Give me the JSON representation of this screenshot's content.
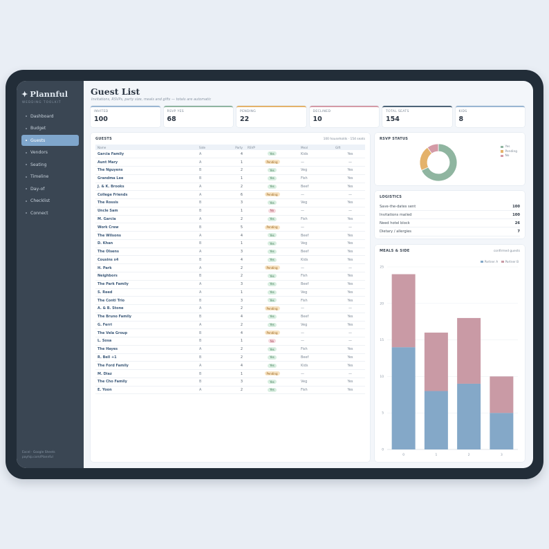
{
  "brand": {
    "name": "Plannful",
    "star": "✦",
    "subtitle": "WEDDING TOOLKIT"
  },
  "nav": [
    {
      "label": "Dashboard",
      "active": false
    },
    {
      "label": "Budget",
      "active": false
    },
    {
      "label": "Guests",
      "active": true
    },
    {
      "label": "Vendors",
      "active": false
    },
    {
      "label": "Seating",
      "active": false
    },
    {
      "label": "Timeline",
      "active": false
    },
    {
      "label": "Day-of",
      "active": false
    },
    {
      "label": "Checklist",
      "active": false
    },
    {
      "label": "Connect",
      "active": false
    }
  ],
  "footer": {
    "line1": "Excel · Google Sheets",
    "line2": "payhip.com/Plannful"
  },
  "page": {
    "title": "Guest List",
    "subtitle": "Invitations, RSVPs, party size, meals and gifts — totals are automatic"
  },
  "kpis": [
    {
      "label": "INVITED",
      "value": "100",
      "color": "#9ab6d2"
    },
    {
      "label": "RSVP YES",
      "value": "68",
      "color": "#8fb5a0"
    },
    {
      "label": "PENDING",
      "value": "22",
      "color": "#e4b26a"
    },
    {
      "label": "DECLINED",
      "value": "10",
      "color": "#d49aa6"
    },
    {
      "label": "TOTAL SEATS",
      "value": "154",
      "color": "#4d6478"
    },
    {
      "label": "KIDS",
      "value": "8",
      "color": "#9ab6d2"
    }
  ],
  "guests": {
    "title": "GUESTS",
    "meta": "100 households · 154 seats",
    "columns": [
      "Name",
      "Side",
      "Party",
      "RSVP",
      "Meal",
      "Gift"
    ],
    "rows": [
      [
        "Garcia Family",
        "A",
        "4",
        "Yes",
        "Kids",
        "Yes"
      ],
      [
        "Aunt Mary",
        "A",
        "1",
        "Pending",
        "—",
        "—"
      ],
      [
        "The Nguyens",
        "B",
        "2",
        "Yes",
        "Veg",
        "Yes"
      ],
      [
        "Grandma Lee",
        "B",
        "1",
        "Yes",
        "Fish",
        "Yes"
      ],
      [
        "J. & K. Brooks",
        "A",
        "2",
        "Yes",
        "Beef",
        "Yes"
      ],
      [
        "College Friends",
        "A",
        "6",
        "Pending",
        "—",
        "—"
      ],
      [
        "The Rossis",
        "B",
        "3",
        "Yes",
        "Veg",
        "Yes"
      ],
      [
        "Uncle Sam",
        "B",
        "1",
        "No",
        "—",
        "—"
      ],
      [
        "M. Garcia",
        "A",
        "2",
        "Yes",
        "Fish",
        "Yes"
      ],
      [
        "Work Crew",
        "B",
        "5",
        "Pending",
        "—",
        "—"
      ],
      [
        "The Wilsons",
        "A",
        "4",
        "Yes",
        "Beef",
        "Yes"
      ],
      [
        "D. Khan",
        "B",
        "1",
        "Yes",
        "Veg",
        "Yes"
      ],
      [
        "The Olsens",
        "A",
        "3",
        "Yes",
        "Beef",
        "Yes"
      ],
      [
        "Cousins x4",
        "B",
        "4",
        "Yes",
        "Kids",
        "Yes"
      ],
      [
        "H. Park",
        "A",
        "2",
        "Pending",
        "—",
        "—"
      ],
      [
        "Neighbors",
        "B",
        "2",
        "Yes",
        "Fish",
        "Yes"
      ],
      [
        "The Park Family",
        "A",
        "3",
        "Yes",
        "Beef",
        "Yes"
      ],
      [
        "S. Reed",
        "A",
        "1",
        "Yes",
        "Veg",
        "Yes"
      ],
      [
        "The Conti Trio",
        "B",
        "3",
        "Yes",
        "Fish",
        "Yes"
      ],
      [
        "A. & B. Stone",
        "A",
        "2",
        "Pending",
        "—",
        "—"
      ],
      [
        "The Bruno Family",
        "B",
        "4",
        "Yes",
        "Beef",
        "Yes"
      ],
      [
        "G. Ferri",
        "A",
        "2",
        "Yes",
        "Veg",
        "Yes"
      ],
      [
        "The Vela Group",
        "B",
        "4",
        "Pending",
        "—",
        "—"
      ],
      [
        "L. Sosa",
        "B",
        "1",
        "No",
        "—",
        "—"
      ],
      [
        "The Hayes",
        "A",
        "2",
        "Yes",
        "Fish",
        "Yes"
      ],
      [
        "R. Bell +1",
        "B",
        "2",
        "Yes",
        "Beef",
        "Yes"
      ],
      [
        "The Ford Family",
        "A",
        "4",
        "Yes",
        "Kids",
        "Yes"
      ],
      [
        "M. Diaz",
        "B",
        "1",
        "Pending",
        "—",
        "—"
      ],
      [
        "The Cho Family",
        "B",
        "3",
        "Yes",
        "Veg",
        "Yes"
      ],
      [
        "E. Yoon",
        "A",
        "2",
        "Yes",
        "Fish",
        "Yes"
      ]
    ]
  },
  "rsvp_status": {
    "title": "RSVP STATUS",
    "slices": [
      {
        "label": "Yes",
        "value": 68,
        "color": "#8fb5a0"
      },
      {
        "label": "Pending",
        "value": 22,
        "color": "#e4b26a"
      },
      {
        "label": "No",
        "value": 10,
        "color": "#d49aa6"
      }
    ]
  },
  "logistics": {
    "title": "LOGISTICS",
    "rows": [
      {
        "label": "Save-the-dates sent",
        "value": "100"
      },
      {
        "label": "Invitations mailed",
        "value": "100"
      },
      {
        "label": "Need hotel block",
        "value": "26"
      },
      {
        "label": "Dietary / allergies",
        "value": "7"
      }
    ]
  },
  "meals": {
    "title": "MEALS & SIDE",
    "note": "confirmed guests"
  },
  "chart_data": {
    "type": "bar",
    "stacked": true,
    "categories": [
      "0",
      "1",
      "2",
      "3"
    ],
    "series": [
      {
        "name": "Partner A",
        "values": [
          14,
          8,
          9,
          5
        ],
        "color": "#84a8c8"
      },
      {
        "name": "Partner B",
        "values": [
          10,
          8,
          9,
          5
        ],
        "color": "#c99aa5"
      }
    ],
    "yticks": [
      0,
      5,
      10,
      15,
      20,
      25
    ],
    "ylim": [
      0,
      25
    ],
    "grid": true,
    "legend": "top-right"
  }
}
